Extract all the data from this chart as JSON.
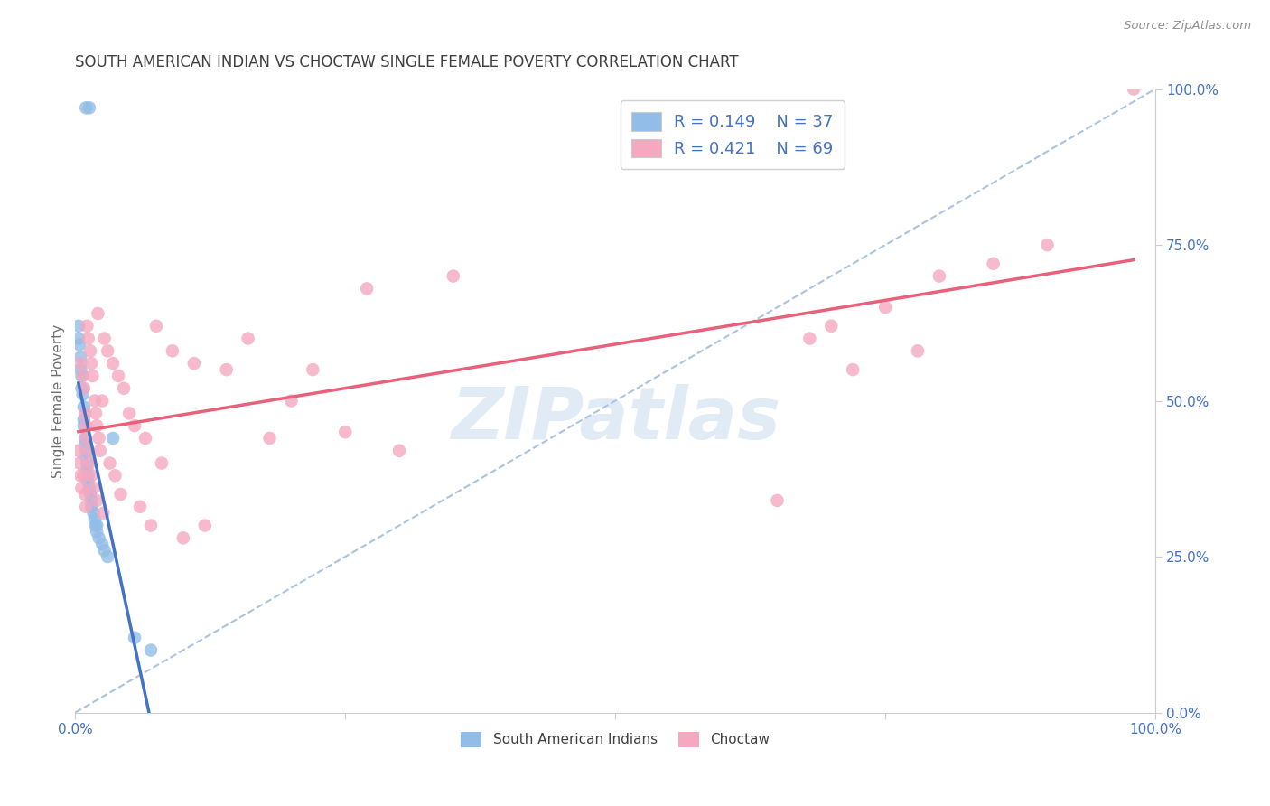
{
  "title": "SOUTH AMERICAN INDIAN VS CHOCTAW SINGLE FEMALE POVERTY CORRELATION CHART",
  "source": "Source: ZipAtlas.com",
  "ylabel": "Single Female Poverty",
  "watermark": "ZIPatlas",
  "xlim": [
    0.0,
    1.0
  ],
  "ylim": [
    0.0,
    1.0
  ],
  "legend_r1": "R = 0.149",
  "legend_n1": "N = 37",
  "legend_r2": "R = 0.421",
  "legend_n2": "N = 69",
  "blue_color": "#92bde8",
  "pink_color": "#f5a8c0",
  "line_blue": "#4472c4",
  "line_pink": "#e8607a",
  "diag_color": "#aac4e0",
  "blue_scatter_x": [
    0.01,
    0.013,
    0.003,
    0.003,
    0.004,
    0.005,
    0.005,
    0.006,
    0.006,
    0.007,
    0.008,
    0.008,
    0.008,
    0.009,
    0.009,
    0.01,
    0.01,
    0.011,
    0.011,
    0.012,
    0.012,
    0.013,
    0.014,
    0.015,
    0.015,
    0.017,
    0.018,
    0.019,
    0.02,
    0.02,
    0.022,
    0.025,
    0.027,
    0.03,
    0.035,
    0.055,
    0.07
  ],
  "blue_scatter_y": [
    0.97,
    0.97,
    0.62,
    0.6,
    0.59,
    0.57,
    0.55,
    0.54,
    0.52,
    0.51,
    0.49,
    0.47,
    0.46,
    0.44,
    0.43,
    0.42,
    0.41,
    0.4,
    0.39,
    0.38,
    0.37,
    0.36,
    0.35,
    0.34,
    0.33,
    0.32,
    0.31,
    0.3,
    0.3,
    0.29,
    0.28,
    0.27,
    0.26,
    0.25,
    0.44,
    0.12,
    0.1
  ],
  "pink_scatter_x": [
    0.003,
    0.004,
    0.005,
    0.005,
    0.006,
    0.007,
    0.008,
    0.008,
    0.009,
    0.009,
    0.01,
    0.01,
    0.01,
    0.011,
    0.012,
    0.012,
    0.013,
    0.014,
    0.015,
    0.015,
    0.016,
    0.017,
    0.018,
    0.019,
    0.02,
    0.02,
    0.021,
    0.022,
    0.023,
    0.025,
    0.026,
    0.027,
    0.03,
    0.032,
    0.035,
    0.037,
    0.04,
    0.042,
    0.045,
    0.05,
    0.055,
    0.06,
    0.065,
    0.07,
    0.075,
    0.08,
    0.09,
    0.1,
    0.11,
    0.12,
    0.14,
    0.16,
    0.18,
    0.2,
    0.22,
    0.25,
    0.27,
    0.3,
    0.35,
    0.65,
    0.68,
    0.7,
    0.72,
    0.75,
    0.78,
    0.8,
    0.85,
    0.9,
    0.98
  ],
  "pink_scatter_y": [
    0.42,
    0.4,
    0.56,
    0.38,
    0.36,
    0.54,
    0.52,
    0.38,
    0.35,
    0.48,
    0.46,
    0.44,
    0.33,
    0.62,
    0.6,
    0.42,
    0.4,
    0.58,
    0.56,
    0.38,
    0.54,
    0.36,
    0.5,
    0.48,
    0.46,
    0.34,
    0.64,
    0.44,
    0.42,
    0.5,
    0.32,
    0.6,
    0.58,
    0.4,
    0.56,
    0.38,
    0.54,
    0.35,
    0.52,
    0.48,
    0.46,
    0.33,
    0.44,
    0.3,
    0.62,
    0.4,
    0.58,
    0.28,
    0.56,
    0.3,
    0.55,
    0.6,
    0.44,
    0.5,
    0.55,
    0.45,
    0.68,
    0.42,
    0.7,
    0.34,
    0.6,
    0.62,
    0.55,
    0.65,
    0.58,
    0.7,
    0.72,
    0.75,
    1.0
  ],
  "background_color": "#ffffff",
  "grid_color": "#e0e0e0",
  "title_color": "#404040",
  "axis_label_color": "#4472c4"
}
